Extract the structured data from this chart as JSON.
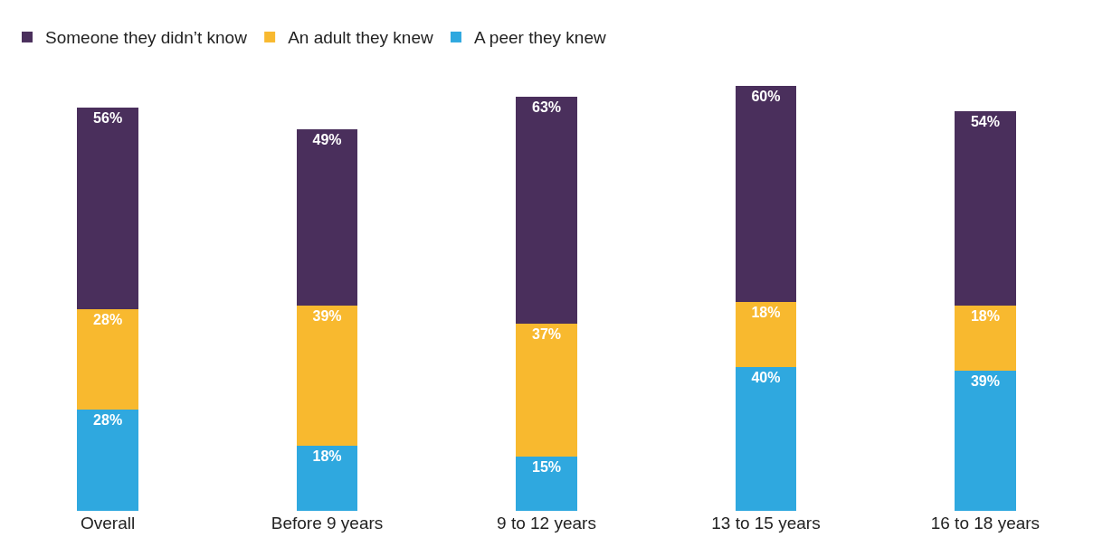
{
  "chart_data": {
    "type": "bar",
    "stacked": true,
    "legend": "top left",
    "categories": [
      "Overall",
      "Before 9 years",
      "9 to 12 years",
      "13 to 15 years",
      "16 to 18 years"
    ],
    "series": [
      {
        "name": "A peer they knew",
        "color": "#2fa8df",
        "values": [
          28,
          18,
          15,
          40,
          39
        ],
        "value_labels": [
          "28%",
          "18%",
          "15%",
          "40%",
          "39%"
        ]
      },
      {
        "name": "An adult they knew",
        "color": "#f8b92f",
        "values": [
          28,
          39,
          37,
          18,
          18
        ],
        "value_labels": [
          "28%",
          "39%",
          "37%",
          "18%",
          "18%"
        ]
      },
      {
        "name": "Someone they didn’t know",
        "color": "#4a2f5c",
        "values": [
          56,
          49,
          63,
          60,
          54
        ],
        "value_labels": [
          "56%",
          "49%",
          "63%",
          "60%",
          "54%"
        ]
      }
    ]
  }
}
